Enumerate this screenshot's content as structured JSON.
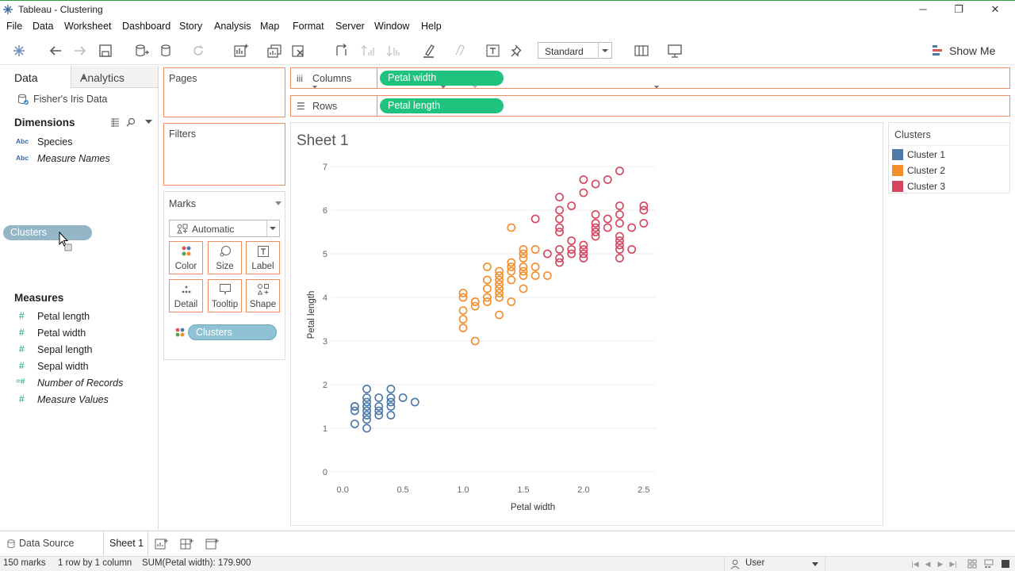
{
  "window": {
    "title": "Tableau - Clustering",
    "minimize": "─",
    "restore": "❐",
    "close": "✕"
  },
  "menu": [
    "File",
    "Data",
    "Worksheet",
    "Dashboard",
    "Story",
    "Analysis",
    "Map",
    "Format",
    "Server",
    "Window",
    "Help"
  ],
  "toolbar": {
    "fit": "Standard",
    "show_me": "Show Me"
  },
  "data_pane": {
    "tab_data": "Data",
    "tab_analytics": "Analytics",
    "datasource": "Fisher's Iris Data",
    "dimensions_header": "Dimensions",
    "dimensions": [
      {
        "type": "Abc",
        "label": "Species"
      },
      {
        "type": "Abc",
        "label": "Measure Names"
      }
    ],
    "measures_header": "Measures",
    "measures": [
      {
        "type": "#",
        "label": "Petal length"
      },
      {
        "type": "#",
        "label": "Petal width"
      },
      {
        "type": "#",
        "label": "Sepal length"
      },
      {
        "type": "#",
        "label": "Sepal width"
      },
      {
        "type": "=#",
        "label": "Number of Records"
      },
      {
        "type": "#",
        "label": "Measure Values"
      }
    ],
    "dragging_pill": "Clusters"
  },
  "cards": {
    "pages": "Pages",
    "filters": "Filters",
    "marks": "Marks",
    "mark_type": "Automatic",
    "buttons": [
      "Color",
      "Size",
      "Label",
      "Detail",
      "Tooltip",
      "Shape"
    ],
    "color_pill": "Clusters"
  },
  "shelves": {
    "columns_label": "Columns",
    "columns_pill": "Petal width",
    "rows_label": "Rows",
    "rows_pill": "Petal length"
  },
  "sheet": {
    "title": "Sheet 1"
  },
  "legend": {
    "title": "Clusters",
    "items": [
      {
        "label": "Cluster 1",
        "color": "#4e79a7"
      },
      {
        "label": "Cluster 2",
        "color": "#f28e2b"
      },
      {
        "label": "Cluster 3",
        "color": "#d6455e"
      }
    ]
  },
  "chart_data": {
    "type": "scatter",
    "xlabel": "Petal width",
    "ylabel": "Petal length",
    "xlim": [
      -0.1,
      2.6
    ],
    "ylim": [
      0,
      7.2
    ],
    "x_ticks": [
      "0.0",
      "0.5",
      "1.0",
      "1.5",
      "2.0",
      "2.5"
    ],
    "y_ticks": [
      "0",
      "1",
      "2",
      "3",
      "4",
      "5",
      "6",
      "7"
    ],
    "series": [
      {
        "name": "Cluster 1",
        "color": "#4e79a7",
        "points": [
          [
            0.1,
            1.4
          ],
          [
            0.1,
            1.5
          ],
          [
            0.1,
            1.5
          ],
          [
            0.1,
            1.1
          ],
          [
            0.2,
            1.4
          ],
          [
            0.2,
            1.3
          ],
          [
            0.2,
            1.5
          ],
          [
            0.2,
            1.6
          ],
          [
            0.2,
            1.2
          ],
          [
            0.2,
            1.0
          ],
          [
            0.2,
            1.7
          ],
          [
            0.2,
            1.9
          ],
          [
            0.3,
            1.4
          ],
          [
            0.3,
            1.3
          ],
          [
            0.3,
            1.5
          ],
          [
            0.3,
            1.7
          ],
          [
            0.4,
            1.5
          ],
          [
            0.4,
            1.3
          ],
          [
            0.4,
            1.7
          ],
          [
            0.4,
            1.9
          ],
          [
            0.4,
            1.6
          ],
          [
            0.5,
            1.7
          ],
          [
            0.6,
            1.6
          ]
        ]
      },
      {
        "name": "Cluster 2",
        "color": "#f28e2b",
        "points": [
          [
            1.0,
            3.3
          ],
          [
            1.0,
            3.5
          ],
          [
            1.0,
            3.7
          ],
          [
            1.0,
            4.0
          ],
          [
            1.0,
            4.1
          ],
          [
            1.1,
            3.0
          ],
          [
            1.1,
            3.8
          ],
          [
            1.1,
            3.9
          ],
          [
            1.2,
            3.9
          ],
          [
            1.2,
            4.0
          ],
          [
            1.2,
            4.2
          ],
          [
            1.2,
            4.4
          ],
          [
            1.2,
            4.7
          ],
          [
            1.3,
            3.6
          ],
          [
            1.3,
            4.0
          ],
          [
            1.3,
            4.1
          ],
          [
            1.3,
            4.2
          ],
          [
            1.3,
            4.3
          ],
          [
            1.3,
            4.4
          ],
          [
            1.3,
            4.5
          ],
          [
            1.3,
            4.6
          ],
          [
            1.4,
            3.9
          ],
          [
            1.4,
            4.4
          ],
          [
            1.4,
            4.6
          ],
          [
            1.4,
            4.7
          ],
          [
            1.4,
            4.8
          ],
          [
            1.4,
            5.6
          ],
          [
            1.5,
            4.2
          ],
          [
            1.5,
            4.5
          ],
          [
            1.5,
            4.6
          ],
          [
            1.5,
            4.7
          ],
          [
            1.5,
            4.9
          ],
          [
            1.5,
            5.0
          ],
          [
            1.5,
            5.1
          ],
          [
            1.6,
            4.5
          ],
          [
            1.6,
            4.7
          ],
          [
            1.6,
            5.1
          ],
          [
            1.7,
            4.5
          ]
        ]
      },
      {
        "name": "Cluster 3",
        "color": "#d6455e",
        "points": [
          [
            1.6,
            5.8
          ],
          [
            1.7,
            5.0
          ],
          [
            1.8,
            4.8
          ],
          [
            1.8,
            4.9
          ],
          [
            1.8,
            5.1
          ],
          [
            1.8,
            5.5
          ],
          [
            1.8,
            5.6
          ],
          [
            1.8,
            5.8
          ],
          [
            1.8,
            6.0
          ],
          [
            1.8,
            6.3
          ],
          [
            1.9,
            5.0
          ],
          [
            1.9,
            5.1
          ],
          [
            1.9,
            5.3
          ],
          [
            1.9,
            6.1
          ],
          [
            2.0,
            4.9
          ],
          [
            2.0,
            5.0
          ],
          [
            2.0,
            5.1
          ],
          [
            2.0,
            5.2
          ],
          [
            2.0,
            6.4
          ],
          [
            2.0,
            6.7
          ],
          [
            2.1,
            5.4
          ],
          [
            2.1,
            5.5
          ],
          [
            2.1,
            5.6
          ],
          [
            2.1,
            5.7
          ],
          [
            2.1,
            5.9
          ],
          [
            2.1,
            6.6
          ],
          [
            2.2,
            5.6
          ],
          [
            2.2,
            5.8
          ],
          [
            2.2,
            6.7
          ],
          [
            2.3,
            4.9
          ],
          [
            2.3,
            5.1
          ],
          [
            2.3,
            5.2
          ],
          [
            2.3,
            5.3
          ],
          [
            2.3,
            5.4
          ],
          [
            2.3,
            5.7
          ],
          [
            2.3,
            5.9
          ],
          [
            2.3,
            6.1
          ],
          [
            2.3,
            6.9
          ],
          [
            2.4,
            5.1
          ],
          [
            2.4,
            5.6
          ],
          [
            2.5,
            5.7
          ],
          [
            2.5,
            6.0
          ],
          [
            2.5,
            6.1
          ]
        ]
      }
    ]
  },
  "bottom_tabs": {
    "datasource": "Data Source",
    "sheet": "Sheet 1"
  },
  "status": {
    "marks": "150 marks",
    "rows_cols": "1 row by 1 column",
    "sum": "SUM(Petal width): 179.900",
    "user": "User"
  }
}
